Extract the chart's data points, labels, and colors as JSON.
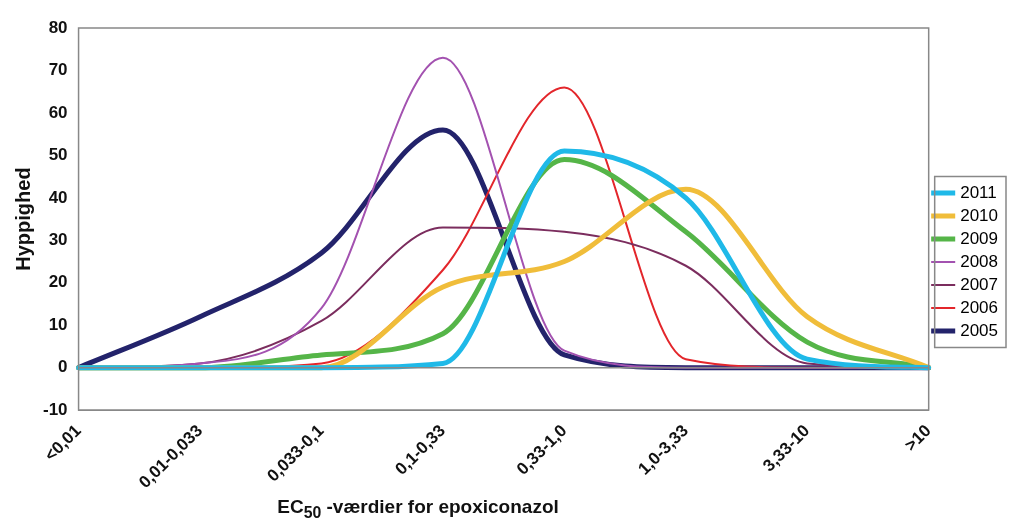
{
  "chart_data": {
    "type": "line",
    "xlabel": "EC$_{50}$ -værdier for epoxiconazol",
    "ylabel": "Hyppighed",
    "categories": [
      "<0,01",
      "0,01-0,033",
      "0,033-0,1",
      "0,1-0,33",
      "0,33-1,0",
      "1,0-3,33",
      "3,33-10",
      ">10"
    ],
    "series": [
      {
        "name": "2011",
        "color": "#1fb9e8",
        "values": [
          0,
          0,
          0,
          1,
          51,
          40,
          2,
          0
        ]
      },
      {
        "name": "2010",
        "color": "#f0bd3a",
        "values": [
          0,
          0,
          0,
          19,
          25,
          42,
          12,
          0
        ]
      },
      {
        "name": "2009",
        "color": "#55b548",
        "values": [
          0,
          0,
          3,
          8,
          49,
          32,
          6,
          0
        ]
      },
      {
        "name": "2008",
        "color": "#a352b0",
        "values": [
          0,
          1,
          14,
          73,
          4,
          0,
          0,
          0
        ]
      },
      {
        "name": "2007",
        "color": "#7b2d5e",
        "values": [
          0,
          1,
          11,
          33,
          32,
          24,
          1,
          0
        ]
      },
      {
        "name": "2006",
        "color": "#e3262b",
        "values": [
          0,
          0,
          1,
          23,
          66,
          2,
          0,
          0
        ]
      },
      {
        "name": "2005",
        "color": "#23236b",
        "values": [
          0,
          12,
          27,
          56,
          3,
          0,
          0,
          0
        ]
      }
    ],
    "ylim": [
      -10,
      80
    ],
    "yticks": [
      -10,
      0,
      10,
      20,
      30,
      40,
      50,
      60,
      70,
      80
    ],
    "ref_lines": [
      {
        "axis": "y",
        "value": 0,
        "color": "#888888"
      }
    ],
    "legend": "right",
    "marker": "none",
    "line_style": "solid"
  }
}
